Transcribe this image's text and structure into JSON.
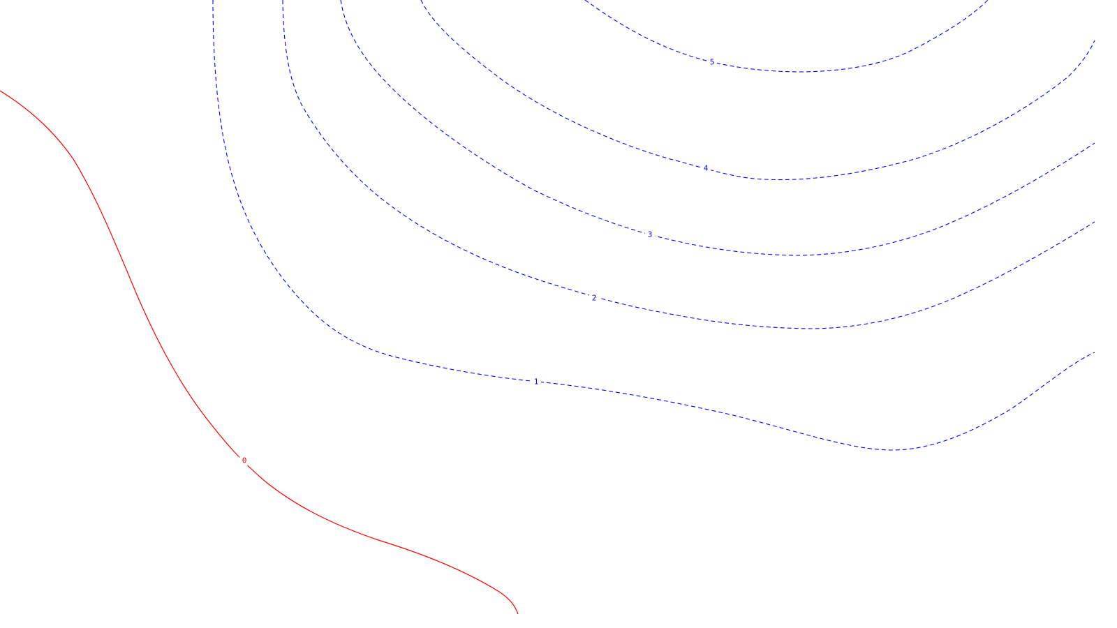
{
  "contour_map": {
    "background": "#ffffff",
    "colors": {
      "zero": "#ff0000",
      "positive": "#0000ff"
    },
    "levels": [
      {
        "value": 0,
        "label": "0",
        "style": "solid",
        "color": "#ff0000"
      },
      {
        "value": 1,
        "label": "1",
        "style": "dashed",
        "color": "#0000ff"
      },
      {
        "value": 2,
        "label": "2",
        "style": "dashed",
        "color": "#0000ff"
      },
      {
        "value": 3,
        "label": "3",
        "style": "dashed",
        "color": "#0000ff"
      },
      {
        "value": 4,
        "label": "4",
        "style": "dashed",
        "color": "#0000ff"
      },
      {
        "value": 5,
        "label": "5",
        "style": "dashed",
        "color": "#0000ff"
      }
    ]
  }
}
